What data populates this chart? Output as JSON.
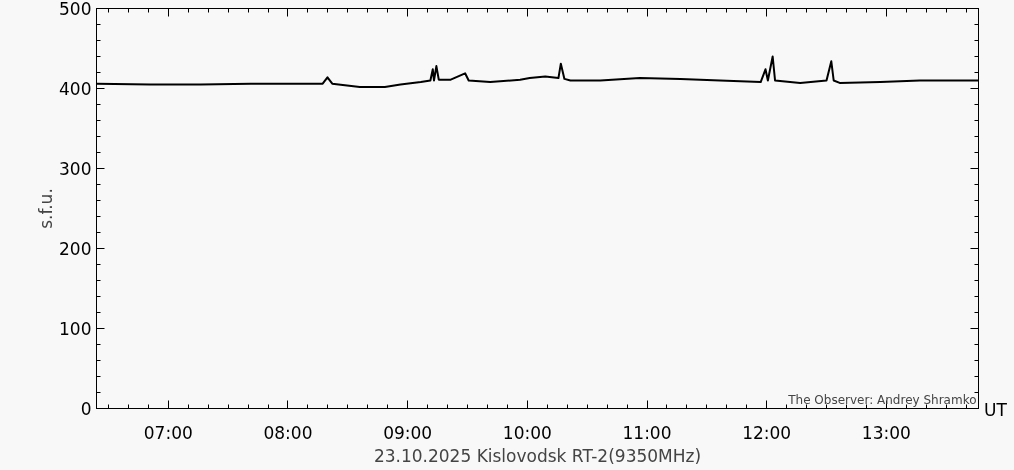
{
  "chart_data": {
    "type": "line",
    "xlabel": "23.10.2025 Kislovodsk RT-2(9350MHz)",
    "ylabel": "s.f.u.",
    "annotations": [
      "UT",
      "The Observer: Andrey Shramko"
    ],
    "x": [
      6.4,
      6.85,
      7.27,
      7.69,
      8.02,
      8.29,
      8.33,
      8.37,
      8.6,
      8.81,
      8.94,
      9.11,
      9.19,
      9.21,
      9.22,
      9.24,
      9.26,
      9.36,
      9.48,
      9.51,
      9.69,
      9.94,
      10.02,
      10.15,
      10.26,
      10.28,
      10.31,
      10.36,
      10.61,
      10.94,
      11.28,
      11.61,
      11.95,
      11.99,
      12.01,
      12.05,
      12.07,
      12.28,
      12.5,
      12.54,
      12.56,
      12.61,
      12.95,
      13.28,
      13.53,
      13.77
    ],
    "series": [
      {
        "color": "#000000",
        "values": [
          406,
          405,
          405,
          406,
          406,
          406,
          414,
          406,
          402,
          402,
          405,
          408,
          410,
          424,
          410,
          428,
          411,
          411,
          419,
          410,
          408,
          411,
          413,
          415,
          413,
          431,
          412,
          410,
          410,
          413,
          412,
          410,
          408,
          424,
          410,
          440,
          410,
          407,
          410,
          434,
          410,
          407,
          408,
          410,
          410,
          410
        ]
      }
    ],
    "xlim": [
      6.4,
      13.77
    ],
    "ylim": [
      0,
      500
    ],
    "xticks": [
      {
        "value": 7,
        "label": "07:00"
      },
      {
        "value": 8,
        "label": "08:00"
      },
      {
        "value": 9,
        "label": "09:00"
      },
      {
        "value": 10,
        "label": "10:00"
      },
      {
        "value": 11,
        "label": "11:00"
      },
      {
        "value": 12,
        "label": "12:00"
      },
      {
        "value": 13,
        "label": "13:00"
      }
    ],
    "yticks": [
      0,
      100,
      200,
      300,
      400,
      500
    ],
    "grid": false,
    "line_style": "solid"
  }
}
